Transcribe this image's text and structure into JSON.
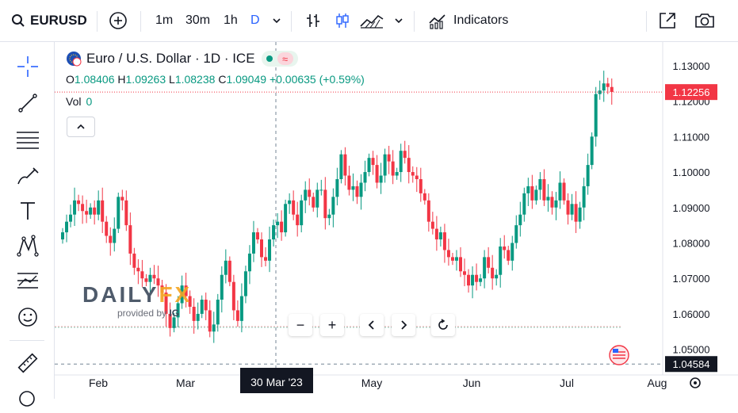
{
  "toolbar": {
    "symbol": "EURUSD",
    "intervals": [
      "1m",
      "30m",
      "1h",
      "D"
    ],
    "active_interval": "D",
    "indicators_label": "Indicators"
  },
  "legend": {
    "title": "Euro / U.S. Dollar · 1D · ICE",
    "o_label": "O",
    "o_value": "1.08406",
    "h_label": "H",
    "h_value": "1.09263",
    "l_label": "L",
    "l_value": "1.08238",
    "c_label": "C",
    "c_value": "1.09049",
    "change": "+0.00635 (+0.59%)",
    "vol_label": "Vol",
    "vol_value": "0"
  },
  "watermark": {
    "brand_a": "DAILY",
    "brand_b": "FX",
    "provided": "provided by"
  },
  "price_labels": {
    "current": "1.12256",
    "cursor": "1.04584"
  },
  "crosshair_date": "30 Mar '23",
  "colors": {
    "up": "#089981",
    "down": "#f23645",
    "accent": "#2962ff"
  },
  "chart_data": {
    "type": "candlestick",
    "title": "Euro / U.S. Dollar · 1D · ICE",
    "x_tick_labels": [
      "Feb",
      "Mar",
      "30 Mar '23",
      "May",
      "Jun",
      "Jul",
      "Aug"
    ],
    "y_tick_labels": [
      "1.13000",
      "1.12000",
      "1.11000",
      "1.10000",
      "1.09000",
      "1.08000",
      "1.07000",
      "1.06000",
      "1.05000"
    ],
    "ylim": [
      1.045,
      1.134
    ],
    "last_price": 1.12256,
    "crosshair_price": 1.04584,
    "grid": false,
    "series": [
      {
        "values": [
          1.083,
          1.086,
          1.088,
          1.092,
          1.091,
          1.089,
          1.088,
          1.09,
          1.088,
          1.092,
          1.086,
          1.082,
          1.08,
          1.084,
          1.093,
          1.092,
          1.085,
          1.077,
          1.073,
          1.072,
          1.07,
          1.069,
          1.071,
          1.07,
          1.068,
          1.066,
          1.06,
          1.056,
          1.059,
          1.063,
          1.068,
          1.065,
          1.062,
          1.058,
          1.06,
          1.064,
          1.061,
          1.055,
          1.057,
          1.064,
          1.071,
          1.075,
          1.069,
          1.061,
          1.058,
          1.065,
          1.072,
          1.077,
          1.083,
          1.081,
          1.076,
          1.075,
          1.081,
          1.085,
          1.086,
          1.083,
          1.091,
          1.092,
          1.088,
          1.085,
          1.092,
          1.095,
          1.093,
          1.09,
          1.095,
          1.095,
          1.087,
          1.088,
          1.093,
          1.098,
          1.105,
          1.099,
          1.095,
          1.096,
          1.093,
          1.097,
          1.1,
          1.104,
          1.102,
          1.097,
          1.099,
          1.105,
          1.103,
          1.099,
          1.1,
          1.106,
          1.104,
          1.1,
          1.099,
          1.098,
          1.094,
          1.092,
          1.086,
          1.084,
          1.081,
          1.083,
          1.078,
          1.076,
          1.075,
          1.076,
          1.072,
          1.071,
          1.068,
          1.071,
          1.069,
          1.07,
          1.076,
          1.073,
          1.07,
          1.071,
          1.079,
          1.078,
          1.075,
          1.08,
          1.085,
          1.088,
          1.094,
          1.096,
          1.092,
          1.095,
          1.098,
          1.092,
          1.093,
          1.09,
          1.092,
          1.097,
          1.092,
          1.088,
          1.091,
          1.086,
          1.09,
          1.096,
          1.102,
          1.11,
          1.122,
          1.123,
          1.125,
          1.124,
          1.1226
        ]
      }
    ]
  }
}
